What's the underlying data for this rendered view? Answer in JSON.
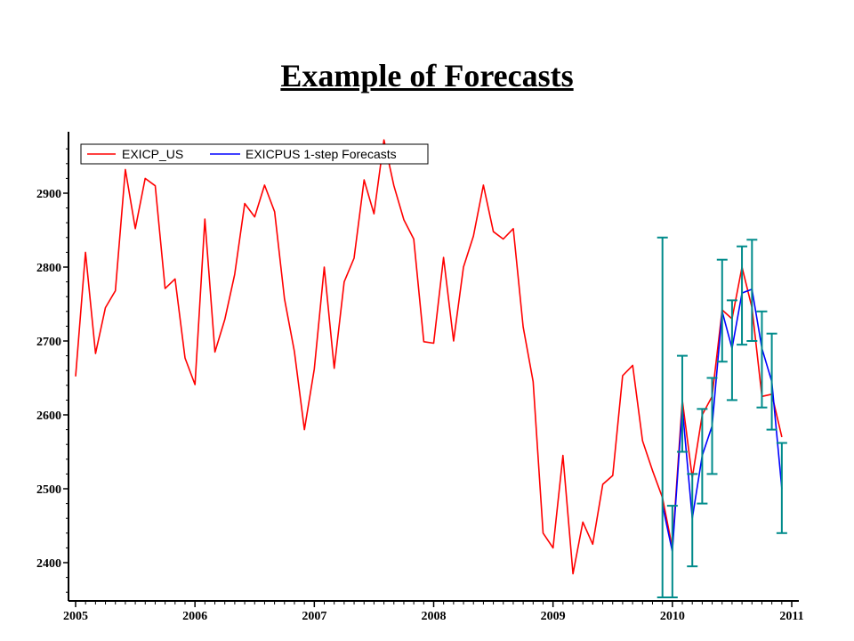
{
  "slide": {
    "title": "Example of Forecasts"
  },
  "colors": {
    "actual": "#ff0000",
    "forecast": "#0000ff",
    "error_bars": "#008b8b",
    "axis": "#000000"
  },
  "chart_data": {
    "type": "line",
    "title": "",
    "xlabel": "",
    "ylabel": "",
    "xlim": [
      2005,
      2011.1
    ],
    "ylim": [
      2350,
      2980
    ],
    "x_ticks": [
      2005,
      2006,
      2007,
      2008,
      2009,
      2010,
      2011
    ],
    "x_tick_labels": [
      "2005",
      "2006",
      "2007",
      "2008",
      "2009",
      "2010",
      "2011"
    ],
    "y_ticks": [
      2400,
      2500,
      2600,
      2700,
      2800,
      2900
    ],
    "y_tick_labels": [
      "2400",
      "2500",
      "2600",
      "2700",
      "2800",
      "2900"
    ],
    "grid": false,
    "legend_position": "top-left",
    "series": [
      {
        "name": "EXICP_US",
        "color": "#ff0000",
        "x": [
          2005.0,
          2005.083,
          2005.167,
          2005.25,
          2005.333,
          2005.417,
          2005.5,
          2005.583,
          2005.667,
          2005.75,
          2005.833,
          2005.917,
          2006.0,
          2006.083,
          2006.167,
          2006.25,
          2006.333,
          2006.417,
          2006.5,
          2006.583,
          2006.667,
          2006.75,
          2006.833,
          2006.917,
          2007.0,
          2007.083,
          2007.167,
          2007.25,
          2007.333,
          2007.417,
          2007.5,
          2007.583,
          2007.667,
          2007.75,
          2007.833,
          2007.917,
          2008.0,
          2008.083,
          2008.167,
          2008.25,
          2008.333,
          2008.417,
          2008.5,
          2008.583,
          2008.667,
          2008.75,
          2008.833,
          2008.917,
          2009.0,
          2009.083,
          2009.167,
          2009.25,
          2009.333,
          2009.417,
          2009.5,
          2009.583,
          2009.667,
          2009.75,
          2009.833,
          2009.917,
          2010.0,
          2010.083,
          2010.167,
          2010.25,
          2010.333,
          2010.417,
          2010.5,
          2010.583,
          2010.667,
          2010.75,
          2010.833,
          2010.917
        ],
        "y": [
          2652,
          2820,
          2683,
          2745,
          2768,
          2932,
          2852,
          2920,
          2910,
          2771,
          2784,
          2677,
          2641,
          2865,
          2685,
          2729,
          2790,
          2886,
          2868,
          2911,
          2875,
          2757,
          2686,
          2580,
          2662,
          2800,
          2663,
          2780,
          2812,
          2918,
          2872,
          2972,
          2910,
          2864,
          2838,
          2699,
          2697,
          2813,
          2700,
          2800,
          2842,
          2911,
          2848,
          2838,
          2852,
          2719,
          2645,
          2440,
          2420,
          2545,
          2385,
          2455,
          2425,
          2506,
          2518,
          2653,
          2667,
          2565,
          2525,
          2488,
          2420,
          2620,
          2515,
          2600,
          2625,
          2742,
          2730,
          2800,
          2745,
          2625,
          2628,
          2570
        ]
      },
      {
        "name": "EXICPUS 1-step Forecasts",
        "color": "#0000ff",
        "x": [
          2009.917,
          2010.0,
          2010.083,
          2010.167,
          2010.25,
          2010.333,
          2010.417,
          2010.5,
          2010.583,
          2010.667,
          2010.75,
          2010.833,
          2010.917
        ],
        "y": [
          2478,
          2415,
          2610,
          2460,
          2545,
          2585,
          2740,
          2690,
          2765,
          2770,
          2690,
          2645,
          2500
        ],
        "error_bars": {
          "lower": [
            2353,
            2353,
            2550,
            2395,
            2480,
            2520,
            2672,
            2620,
            2695,
            2700,
            2610,
            2580,
            2440
          ],
          "upper": [
            2840,
            2477,
            2680,
            2520,
            2608,
            2650,
            2810,
            2755,
            2828,
            2837,
            2740,
            2710,
            2562
          ]
        }
      }
    ]
  }
}
